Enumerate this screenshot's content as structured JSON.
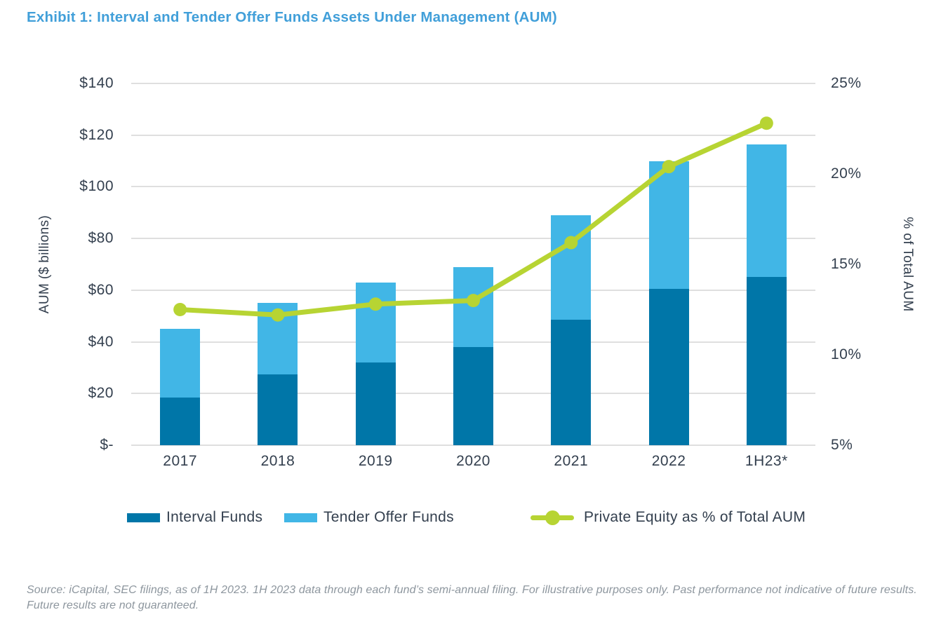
{
  "page": {
    "title": "Exhibit 1: Interval and Tender Offer Funds Assets Under Management (AUM)"
  },
  "chart_data": {
    "type": "bar",
    "subtype": "stacked-bar-with-line-overlay",
    "categories": [
      "2017",
      "2018",
      "2019",
      "2020",
      "2021",
      "2022",
      "1H23*"
    ],
    "series": [
      {
        "name": "Interval Funds",
        "type": "bar",
        "axis": "left",
        "color": "#0076a8",
        "values": [
          18.5,
          27.5,
          32,
          38,
          48.5,
          60.5,
          65
        ]
      },
      {
        "name": "Tender Offer Funds",
        "type": "bar",
        "axis": "left",
        "color": "#41b6e6",
        "values": [
          26.5,
          27.5,
          31,
          31,
          40.5,
          49.5,
          51.5
        ]
      },
      {
        "name": "Private Equity as % of Total AUM",
        "type": "line",
        "axis": "right",
        "color": "#b7d433",
        "values": [
          12.5,
          12.2,
          12.8,
          13.0,
          16.2,
          20.4,
          22.8
        ]
      }
    ],
    "stacked_totals": [
      45,
      55,
      63,
      69,
      89,
      110,
      116.5
    ],
    "left_axis": {
      "label": "AUM ($ billions)",
      "ticks": [
        "$140",
        "$120",
        "$100",
        "$80",
        "$60",
        "$40",
        "$20",
        "$-"
      ],
      "min": 0,
      "max": 140,
      "step": 20
    },
    "right_axis": {
      "label": "% of Total AUM",
      "ticks": [
        "25%",
        "20%",
        "15%",
        "10%",
        "5%"
      ],
      "min": 5,
      "max": 25,
      "step": 5
    },
    "grid": "horizontal",
    "legend_position": "bottom"
  },
  "footer": {
    "line1": "Source: iCapital, SEC filings, as of 1H 2023. 1H 2023 data through each fund’s semi-annual filing. For illustrative purposes only. Past performance not indicative of future results.",
    "line2": "Future results are not guaranteed."
  }
}
